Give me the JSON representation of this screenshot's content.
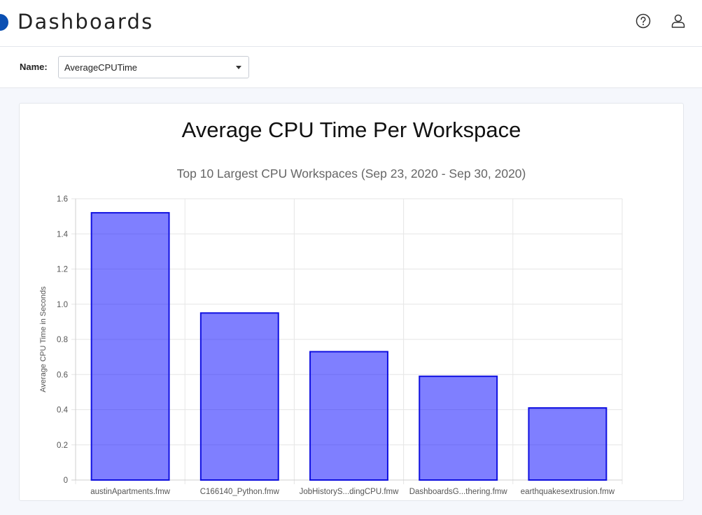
{
  "header": {
    "title": "Dashboards",
    "icons": [
      "help-icon",
      "user-icon"
    ]
  },
  "filter": {
    "name_label": "Name:",
    "selected": "AverageCPUTime"
  },
  "chart": {
    "heading": "Average CPU Time Per Workspace"
  },
  "colors": {
    "brand": "#0a4fb3",
    "bar_fill": "#8080ff",
    "bar_stroke": "#1010e0"
  },
  "chart_data": {
    "type": "bar",
    "title": "Average CPU Time Per Workspace",
    "subtitle": "Top 10 Largest CPU Workspaces (Sep 23, 2020 - Sep 30, 2020)",
    "xlabel": "",
    "ylabel": "Average CPU Time in Seconds",
    "categories": [
      "austinApartments.fmw",
      "C166140_Python.fmw",
      "JobHistoryS...dingCPU.fmw",
      "DashboardsG...thering.fmw",
      "earthquakesextrusion.fmw"
    ],
    "values": [
      1.52,
      0.95,
      0.73,
      0.59,
      0.41
    ],
    "yticks": [
      "0",
      "0.2",
      "0.4",
      "0.6",
      "0.8",
      "1.0",
      "1.2",
      "1.4",
      "1.6"
    ],
    "ylim": [
      0,
      1.6
    ],
    "grid": true,
    "legend": "none"
  }
}
